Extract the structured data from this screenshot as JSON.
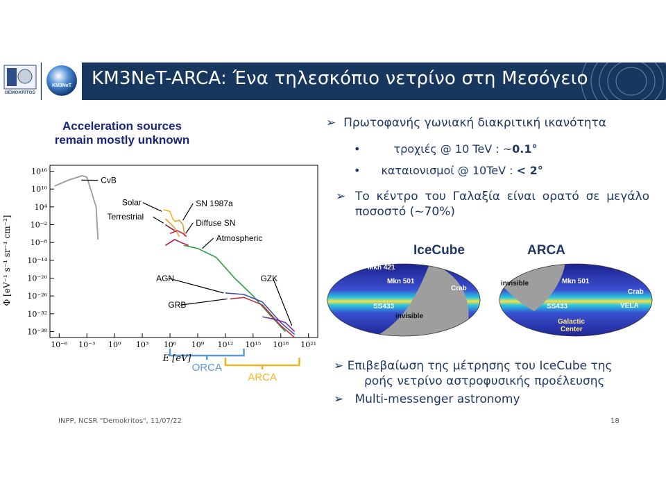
{
  "header": {
    "title": "KM3NeT-ARCA: Ένα τηλεσκόπιο νετρίνο στη Μεσόγειο",
    "logo_left_text": "DEMOKRITOS",
    "logo_right_text": "KM3NeT"
  },
  "left": {
    "heading_line1": "Acceleration sources",
    "heading_line2": "remain mostly unknown"
  },
  "chart_data": {
    "type": "line",
    "ylabel": "Φ [eV⁻¹ s⁻¹ sr⁻¹ cm⁻²]",
    "xlabel": "E [eV]",
    "x_ticks": [
      "10⁻⁶",
      "10⁻³",
      "10⁰",
      "10³",
      "10⁶",
      "10⁹",
      "10¹²",
      "10¹⁵",
      "10¹⁸",
      "10²¹"
    ],
    "y_ticks": [
      "10¹⁶",
      "10¹⁰",
      "10⁴",
      "10⁻²",
      "10⁻⁸",
      "10⁻¹⁴",
      "10⁻²⁰",
      "10⁻²⁶",
      "10⁻³²",
      "10⁻³⁸"
    ],
    "xlim_log10": [
      -7,
      22
    ],
    "ylim_log10": [
      -40,
      18
    ],
    "annotations": [
      "CνB",
      "Solar",
      "Terrestrial",
      "SN 1987a",
      "Diffuse SN",
      "Atmospheric",
      "AGN",
      "GRB",
      "GZK"
    ],
    "ranges": [
      {
        "label": "ORCA",
        "from_log10": 6,
        "to_log10": 14,
        "color": "#5b9bd5"
      },
      {
        "label": "ARCA",
        "from_log10": 12,
        "to_log10": 20,
        "color": "#f0b323"
      }
    ]
  },
  "right": {
    "bullet1": "Πρωτοφανής γωνιακή διακριτική ικανότητα",
    "sub1": "τροχιές @ 10 TeV : ~",
    "sub1_bold": "0.1°",
    "sub2": "καταιονισμοί @ 10TeV : ",
    "sub2_bold": "< 2°",
    "bullet2": "Το κέντρο του Γαλαξία είναι ορατό σε μεγάλο ποσοστό (~70%)",
    "map_left_title": "IceCube",
    "map_right_title": "ARCA",
    "map_left_labels": [
      "Mkn 421",
      "Mkn 501",
      "Crab",
      "SS433",
      "invisible"
    ],
    "map_right_labels": [
      "invisible",
      "Mkn 501",
      "Crab",
      "SS433",
      "VELA",
      "Galactic",
      "Center"
    ],
    "bullet3_line1": "Επιβεβαίωση της μέτρησης του IceCube της",
    "bullet3_line2": "ροής νετρίνο αστροφυσικής προέλευσης",
    "bullet4": "Multi-messenger astronomy"
  },
  "footer": {
    "left": "INPP, NCSR \"Demokritos\", 11/07/22",
    "page": "18"
  }
}
